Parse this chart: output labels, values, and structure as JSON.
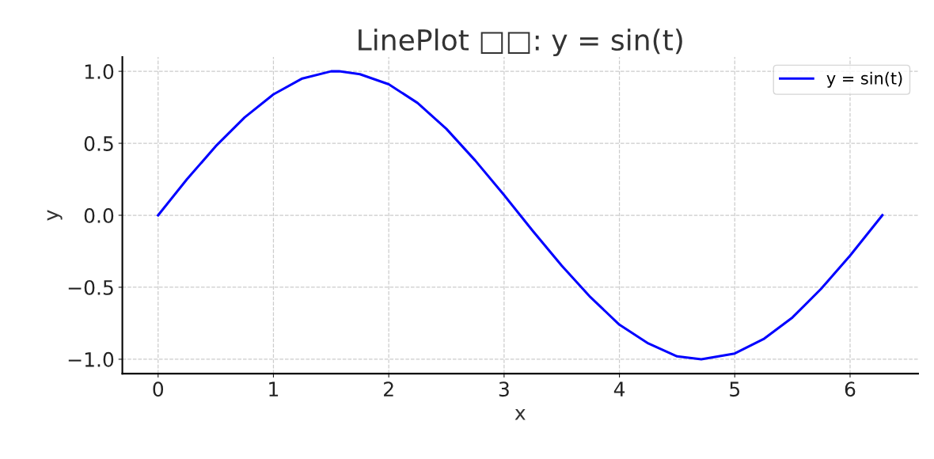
{
  "chart_data": {
    "type": "line",
    "title": "LinePlot □□: y = sin(t)",
    "xlabel": "x",
    "ylabel": "y",
    "x": [
      0,
      0.25,
      0.5,
      0.75,
      1,
      1.25,
      1.5,
      1.57,
      1.75,
      2,
      2.25,
      2.5,
      2.75,
      3,
      3.25,
      3.5,
      3.75,
      4,
      4.25,
      4.5,
      4.71,
      5,
      5.25,
      5.5,
      5.75,
      6,
      6.28
    ],
    "series": [
      {
        "name": "y = sin(t)",
        "color": "#0000ff",
        "values": [
          0,
          0.25,
          0.48,
          0.68,
          0.84,
          0.95,
          1.0,
          1.0,
          0.98,
          0.91,
          0.78,
          0.6,
          0.38,
          0.14,
          -0.11,
          -0.35,
          -0.57,
          -0.76,
          -0.89,
          -0.98,
          -1.0,
          -0.96,
          -0.86,
          -0.71,
          -0.51,
          -0.28,
          0
        ]
      }
    ],
    "xlim": [
      -0.31,
      6.59
    ],
    "ylim": [
      -1.1,
      1.1
    ],
    "xticks": [
      0,
      1,
      2,
      3,
      4,
      5,
      6
    ],
    "yticks": [
      {
        "value": -1.0,
        "label": "−1.0"
      },
      {
        "value": -0.5,
        "label": "−0.5"
      },
      {
        "value": 0.0,
        "label": "0.0"
      },
      {
        "value": 0.5,
        "label": "0.5"
      },
      {
        "value": 1.0,
        "label": "1.0"
      }
    ],
    "grid": true,
    "legend": "top right",
    "line_style": "solid",
    "marker": "none"
  }
}
